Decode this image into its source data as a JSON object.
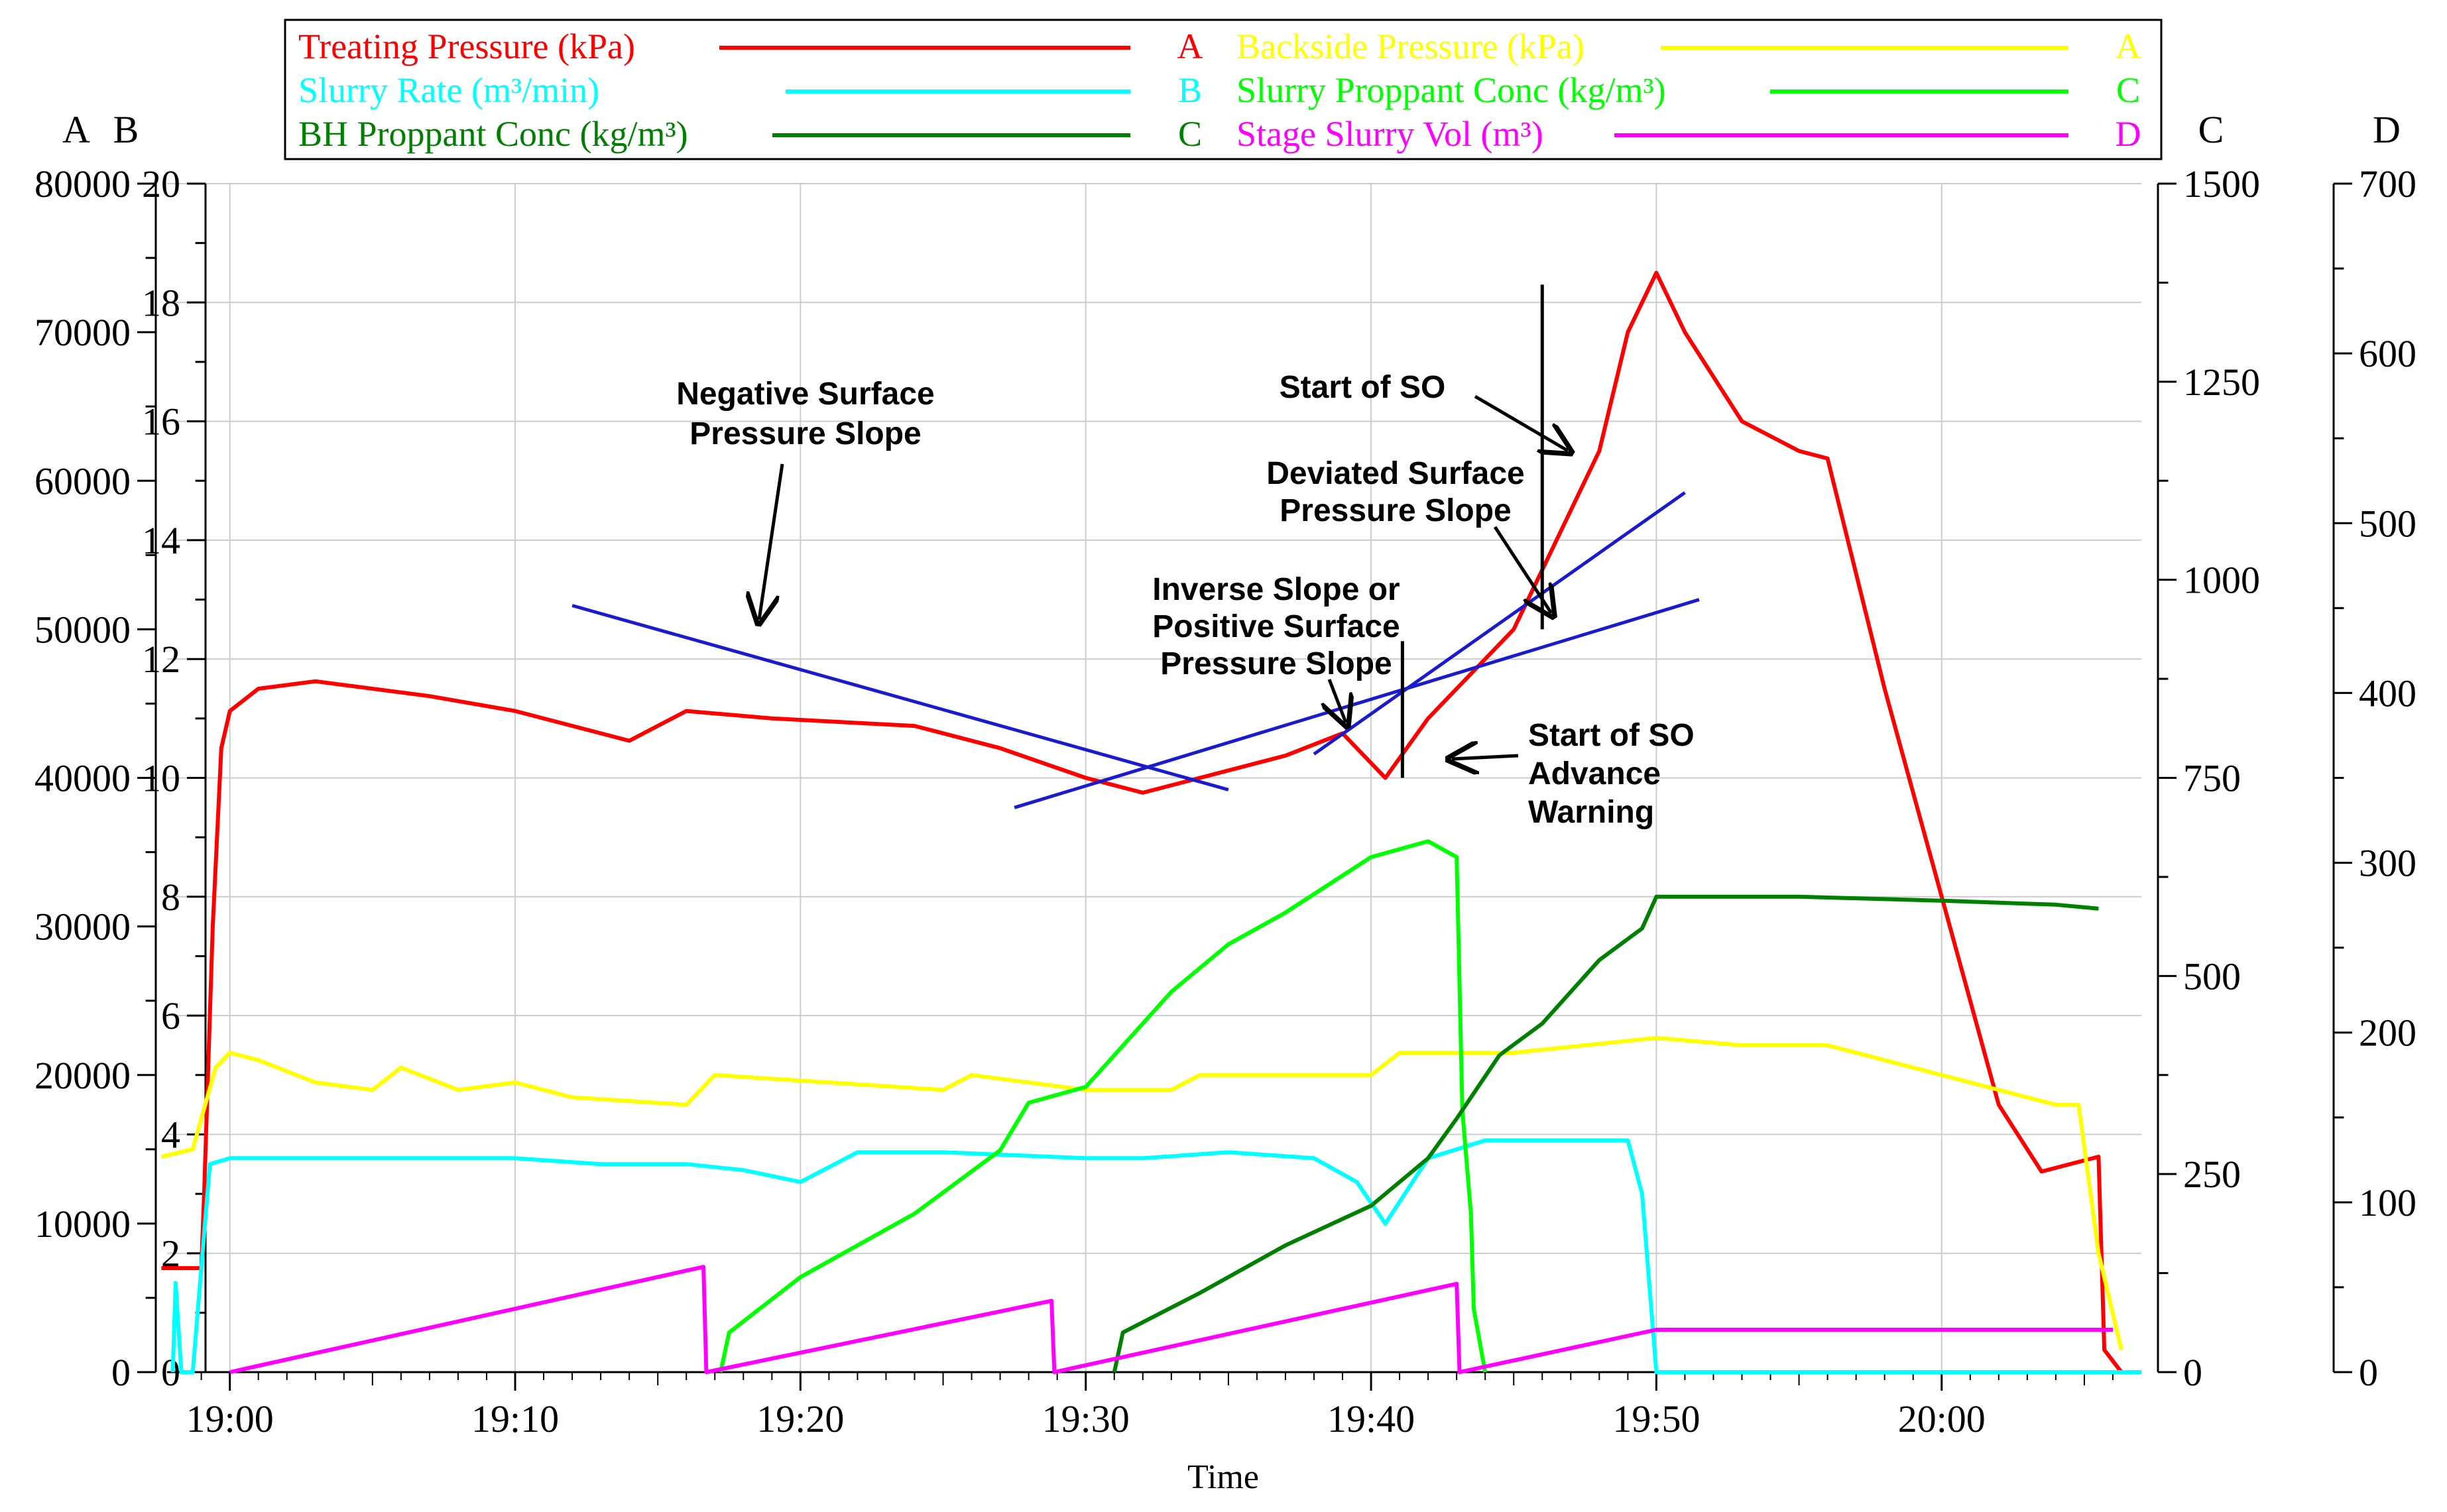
{
  "chart_data": {
    "type": "line",
    "xlabel": "Time",
    "axes_letters": {
      "A": "A",
      "B": "B",
      "C": "C",
      "D": "D"
    },
    "axes": {
      "A": {
        "min": 0,
        "max": 80000,
        "ticks": [
          "0",
          "10000",
          "20000",
          "30000",
          "40000",
          "50000",
          "60000",
          "70000",
          "80000"
        ]
      },
      "B": {
        "min": 0,
        "max": 20,
        "ticks": [
          "0",
          "2",
          "4",
          "6",
          "8",
          "10",
          "12",
          "14",
          "16",
          "18",
          "20"
        ]
      },
      "C": {
        "min": 0,
        "max": 1500,
        "ticks": [
          "0",
          "250",
          "500",
          "750",
          "1000",
          "1250",
          "1500"
        ]
      },
      "D": {
        "min": 0,
        "max": 700,
        "ticks": [
          "0",
          "100",
          "200",
          "300",
          "400",
          "500",
          "600",
          "700"
        ]
      }
    },
    "x_range_minutes": [
      -2.2,
      67.0
    ],
    "x_ticks": [
      {
        "min": 0,
        "label": "19:00"
      },
      {
        "min": 10,
        "label": "19:10"
      },
      {
        "min": 20,
        "label": "19:20"
      },
      {
        "min": 30,
        "label": "19:30"
      },
      {
        "min": 40,
        "label": "19:40"
      },
      {
        "min": 50,
        "label": "19:50"
      },
      {
        "min": 60,
        "label": "20:00"
      }
    ],
    "grid": true,
    "legend_position": "top",
    "series": [
      {
        "name": "Treating Pressure (kPa)",
        "axis": "A",
        "axis_label": "A",
        "color": "#ff0000",
        "points": [
          [
            -2.4,
            7000
          ],
          [
            -1.0,
            7000
          ],
          [
            -0.9,
            12000
          ],
          [
            -0.6,
            30000
          ],
          [
            -0.3,
            42000
          ],
          [
            0,
            44500
          ],
          [
            1,
            46000
          ],
          [
            3,
            46500
          ],
          [
            7,
            45500
          ],
          [
            10,
            44500
          ],
          [
            14,
            42500
          ],
          [
            16,
            44500
          ],
          [
            19,
            44000
          ],
          [
            24,
            43500
          ],
          [
            27,
            42000
          ],
          [
            30,
            40000
          ],
          [
            32,
            39000
          ],
          [
            34,
            40000
          ],
          [
            37,
            41500
          ],
          [
            39,
            43000
          ],
          [
            40.5,
            40000
          ],
          [
            42,
            44000
          ],
          [
            45,
            50000
          ],
          [
            46,
            54000
          ],
          [
            48,
            62000
          ],
          [
            49,
            70000
          ],
          [
            50,
            74000
          ],
          [
            51,
            70000
          ],
          [
            53,
            64000
          ],
          [
            55,
            62000
          ],
          [
            56,
            61500
          ],
          [
            58,
            46000
          ],
          [
            60,
            32000
          ],
          [
            62,
            18000
          ],
          [
            63.5,
            13500
          ],
          [
            65.5,
            14500
          ],
          [
            65.7,
            1500
          ],
          [
            66.3,
            0
          ]
        ]
      },
      {
        "name": "Backside Pressure (kPa)",
        "axis": "A",
        "axis_label": "A",
        "color": "#ffff00",
        "points": [
          [
            -2.4,
            14500
          ],
          [
            -1.3,
            15000
          ],
          [
            -0.5,
            20500
          ],
          [
            0,
            21500
          ],
          [
            1,
            21000
          ],
          [
            3,
            19500
          ],
          [
            5,
            19000
          ],
          [
            6,
            20500
          ],
          [
            8,
            19000
          ],
          [
            10,
            19500
          ],
          [
            12,
            18500
          ],
          [
            16,
            18000
          ],
          [
            17,
            20000
          ],
          [
            25,
            19000
          ],
          [
            26,
            20000
          ],
          [
            30,
            19000
          ],
          [
            33,
            19000
          ],
          [
            34,
            20000
          ],
          [
            40,
            20000
          ],
          [
            41,
            21500
          ],
          [
            45,
            21500
          ],
          [
            50,
            22500
          ],
          [
            53,
            22000
          ],
          [
            56,
            22000
          ],
          [
            60,
            20000
          ],
          [
            64,
            18000
          ],
          [
            64.8,
            18000
          ],
          [
            65.5,
            8000
          ],
          [
            66.3,
            1500
          ]
        ]
      },
      {
        "name": "Slurry Rate (m³/min)",
        "axis": "B",
        "axis_label": "B",
        "color": "#00ffff",
        "points": [
          [
            -2.0,
            0
          ],
          [
            -1.9,
            1.5
          ],
          [
            -1.7,
            0
          ],
          [
            -1.3,
            0
          ],
          [
            -0.7,
            3.5
          ],
          [
            0,
            3.6
          ],
          [
            5,
            3.6
          ],
          [
            10,
            3.6
          ],
          [
            13,
            3.5
          ],
          [
            16,
            3.5
          ],
          [
            18,
            3.4
          ],
          [
            20,
            3.2
          ],
          [
            22,
            3.7
          ],
          [
            25,
            3.7
          ],
          [
            30,
            3.6
          ],
          [
            32,
            3.6
          ],
          [
            35,
            3.7
          ],
          [
            38,
            3.6
          ],
          [
            39.5,
            3.2
          ],
          [
            40.5,
            2.5
          ],
          [
            42,
            3.6
          ],
          [
            44,
            3.9
          ],
          [
            49,
            3.9
          ],
          [
            49.5,
            3.0
          ],
          [
            50,
            0
          ],
          [
            67,
            0
          ]
        ]
      },
      {
        "name": "Slurry Proppant Conc (kg/m³)",
        "axis": "C",
        "axis_label": "C",
        "color": "#00ff00",
        "points": [
          [
            17.2,
            0
          ],
          [
            17.5,
            50
          ],
          [
            20,
            120
          ],
          [
            24,
            200
          ],
          [
            27,
            280
          ],
          [
            28,
            340
          ],
          [
            29,
            350
          ],
          [
            30,
            360
          ],
          [
            31,
            400
          ],
          [
            33,
            480
          ],
          [
            35,
            540
          ],
          [
            37,
            580
          ],
          [
            40,
            650
          ],
          [
            42,
            670
          ],
          [
            43,
            650
          ],
          [
            43.2,
            330
          ],
          [
            43.5,
            200
          ],
          [
            43.6,
            80
          ],
          [
            44,
            0
          ]
        ]
      },
      {
        "name": "BH Proppant Conc (kg/m³)",
        "axis": "C",
        "axis_label": "C",
        "color": "#008000",
        "points": [
          [
            31,
            0
          ],
          [
            31.3,
            50
          ],
          [
            34,
            100
          ],
          [
            37,
            160
          ],
          [
            40,
            210
          ],
          [
            42,
            270
          ],
          [
            43,
            320
          ],
          [
            44.5,
            400
          ],
          [
            46,
            440
          ],
          [
            48,
            520
          ],
          [
            49.5,
            560
          ],
          [
            50,
            600
          ],
          [
            55,
            600
          ],
          [
            60,
            595
          ],
          [
            64,
            590
          ],
          [
            65.5,
            585
          ]
        ]
      },
      {
        "name": "Stage Slurry Vol (m³)",
        "axis": "D",
        "axis_label": "D",
        "color": "#ff00ff",
        "points": [
          [
            0,
            0
          ],
          [
            16.6,
            62
          ],
          [
            16.7,
            0
          ],
          [
            28.8,
            42
          ],
          [
            28.9,
            0
          ],
          [
            43,
            52
          ],
          [
            43.1,
            0
          ],
          [
            50,
            25
          ],
          [
            66,
            25
          ]
        ]
      }
    ],
    "annotation_lines": [
      {
        "x1": 12,
        "y1": 12.9,
        "x2": 35,
        "y2": 9.8
      },
      {
        "x1": 27.5,
        "y1": 9.5,
        "x2": 51.5,
        "y2": 13.0
      },
      {
        "x1": 38,
        "y1": 10.4,
        "x2": 51,
        "y2": 14.8
      }
    ],
    "annotations": [
      {
        "lines": [
          "Negative Surface",
          "Pressure Slope"
        ]
      },
      {
        "lines": [
          "Start of SO"
        ]
      },
      {
        "lines": [
          "Deviated Surface",
          "Pressure Slope"
        ]
      },
      {
        "lines": [
          "Inverse Slope or",
          "Positive Surface",
          "Pressure Slope"
        ]
      },
      {
        "lines": [
          "Start of SO",
          "Advance",
          "Warning"
        ]
      }
    ]
  }
}
